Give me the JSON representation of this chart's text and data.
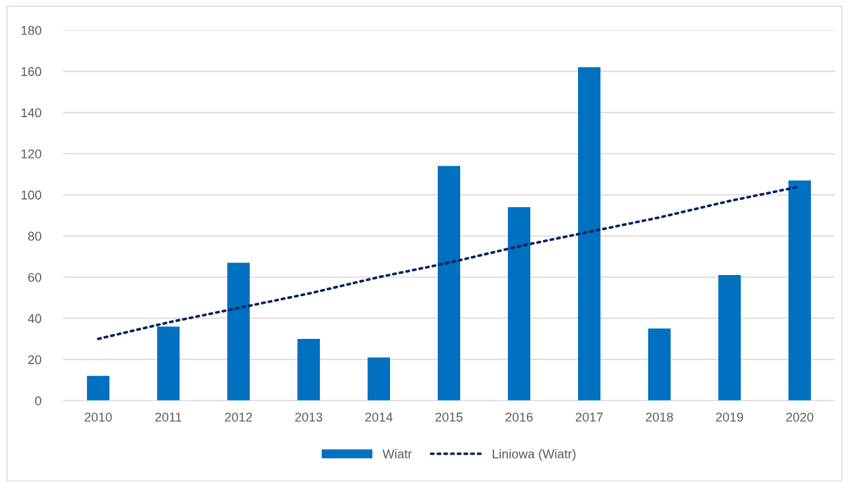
{
  "chart_data": {
    "type": "bar",
    "categories": [
      "2010",
      "2011",
      "2012",
      "2013",
      "2014",
      "2015",
      "2016",
      "2017",
      "2018",
      "2019",
      "2020"
    ],
    "series": [
      {
        "name": "Wiatr",
        "color": "#0070c0",
        "values": [
          12,
          36,
          67,
          30,
          21,
          114,
          94,
          162,
          35,
          61,
          107
        ]
      },
      {
        "name": "Liniowa (Wiatr)",
        "type": "line",
        "color": "#002060",
        "line_style": "dotted",
        "values": [
          30,
          38,
          45,
          52,
          60,
          67,
          75,
          82,
          89,
          97,
          104
        ]
      }
    ],
    "ylim": [
      0,
      180
    ],
    "yticks": [
      0,
      20,
      40,
      60,
      80,
      100,
      120,
      140,
      160,
      180
    ],
    "grid": "y",
    "legend": "bottom",
    "marker": "none"
  }
}
